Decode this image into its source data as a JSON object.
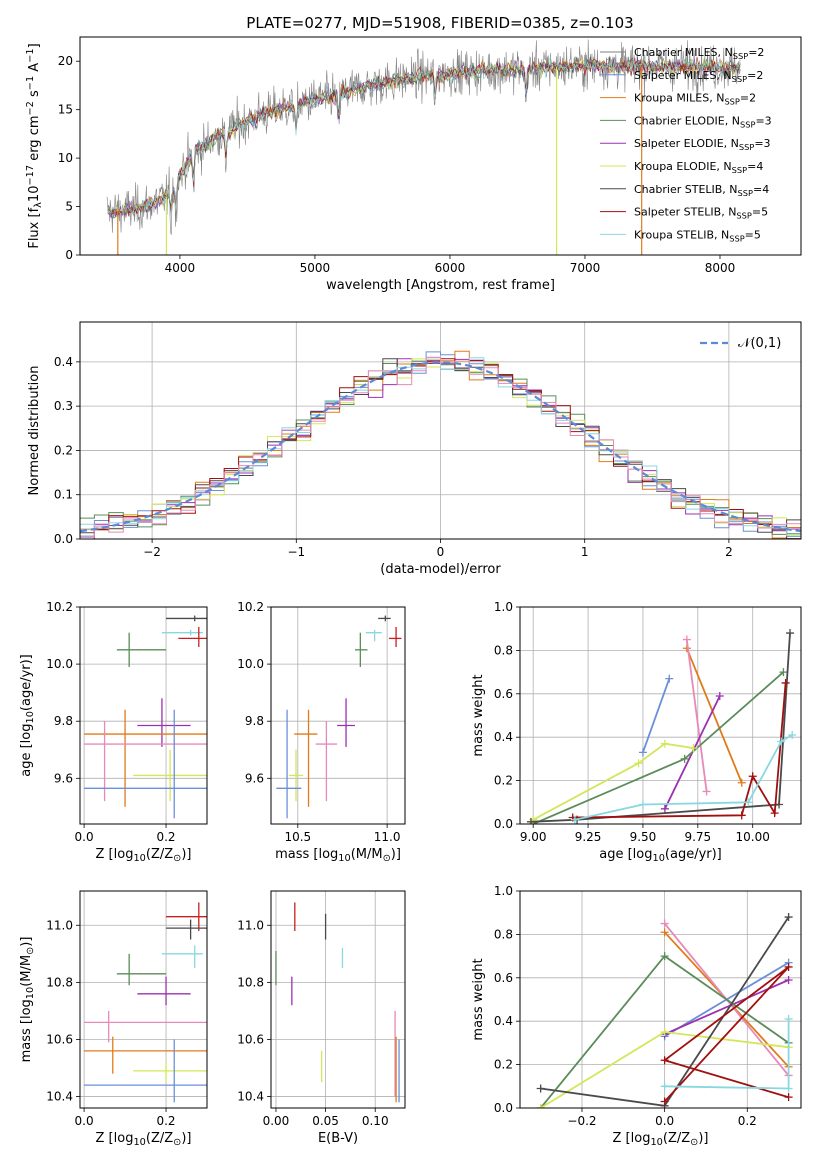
{
  "title": "PLATE=0277, MJD=51908, FIBERID=0385, z=0.103",
  "colors": {
    "chabrier_miles": "#808080",
    "salpeter_miles": "#6b8fd8",
    "kroupa_miles": "#e07b1a",
    "chabrier_elodie": "#5b8c5a",
    "salpeter_elodie": "#9b30b0",
    "kroupa_elodie": "#d4e65a",
    "chabrier_stelib": "#4a4a4a",
    "salpeter_stelib": "#a01010",
    "kroupa_stelib": "#88d8e0",
    "normal_curve": "#5a8ad8",
    "extra_pink": "#e88ab8",
    "extra_red": "#c82020"
  },
  "chart_data": [
    {
      "type": "line",
      "name": "spectrum",
      "xlabel": "wavelength [Angstrom, rest frame]",
      "ylabel": "Flux [f$_\\lambda$10$^{-17}$ erg cm$^{-2}$ s$^{-1}$ A$^{-1}$]",
      "xlim": [
        3260,
        8600
      ],
      "ylim": [
        0,
        22.5
      ],
      "xticks": [
        "4000",
        "5000",
        "6000",
        "7000",
        "8000"
      ],
      "yticks": [
        "0",
        "5",
        "10",
        "15",
        "20"
      ],
      "continuum_x": [
        3500,
        3700,
        3900,
        4100,
        4300,
        4600,
        5000,
        5400,
        5800,
        6200,
        6600,
        7000,
        7400,
        7800,
        8100
      ],
      "continuum_y": [
        4.5,
        4.8,
        6.0,
        10.5,
        12.5,
        14.5,
        16.0,
        17.5,
        18.5,
        19.0,
        19.2,
        19.6,
        19.5,
        19.5,
        19.3
      ],
      "legend": [
        {
          "label": "Chabrier MILES, N$_{SSP}$=2",
          "color_key": "chabrier_miles"
        },
        {
          "label": "Salpeter MILES, N$_{SSP}$=2",
          "color_key": "salpeter_miles"
        },
        {
          "label": "Kroupa MILES, N$_{SSP}$=2",
          "color_key": "kroupa_miles"
        },
        {
          "label": "Chabrier ELODIE, N$_{SSP}$=3",
          "color_key": "chabrier_elodie"
        },
        {
          "label": "Salpeter ELODIE, N$_{SSP}$=3",
          "color_key": "salpeter_elodie"
        },
        {
          "label": "Kroupa ELODIE, N$_{SSP}$=4",
          "color_key": "kroupa_elodie"
        },
        {
          "label": "Chabrier STELIB, N$_{SSP}$=4",
          "color_key": "chabrier_stelib"
        },
        {
          "label": "Salpeter STELIB, N$_{SSP}$=5",
          "color_key": "salpeter_stelib"
        },
        {
          "label": "Kroupa STELIB, N$_{SSP}$=5",
          "color_key": "kroupa_stelib"
        }
      ]
    },
    {
      "type": "area",
      "name": "residual-histogram",
      "xlabel": "(data-model)/error",
      "ylabel": "Normed distribution",
      "xlim": [
        -2.5,
        2.5
      ],
      "ylim": [
        0,
        0.49
      ],
      "xticks": [
        "−2",
        "−1",
        "0",
        "1",
        "2"
      ],
      "yticks": [
        "0.0",
        "0.1",
        "0.2",
        "0.3",
        "0.4"
      ],
      "legend": [
        {
          "label": "$\\mathcal{N}(0,1)$",
          "color_key": "normal_curve"
        }
      ]
    },
    {
      "type": "scatter",
      "name": "age-vs-z",
      "xlabel": "Z [log$_{10}$(Z/Z$_\\odot$)]",
      "ylabel": "age  [log$_{10}$(age/yr)]",
      "xlim": [
        -0.01,
        0.3
      ],
      "ylim": [
        9.44,
        10.2
      ],
      "xticks": [
        "0.0",
        "0.2"
      ],
      "yticks": [
        "9.6",
        "9.8",
        "10.0",
        "10.2"
      ],
      "points": [
        {
          "x": 0.27,
          "y": 10.16,
          "xerr": [
            0.2,
            0.3
          ],
          "yerr": [
            10.15,
            10.17
          ],
          "color_key": "chabrier_stelib"
        },
        {
          "x": 0.26,
          "y": 10.11,
          "xerr": [
            0.19,
            0.29
          ],
          "yerr": [
            10.1,
            10.12
          ],
          "color_key": "kroupa_stelib"
        },
        {
          "x": 0.28,
          "y": 10.09,
          "xerr": [
            0.23,
            0.3
          ],
          "yerr": [
            10.06,
            10.13
          ],
          "color_key": "extra_red"
        },
        {
          "x": 0.11,
          "y": 10.05,
          "xerr": [
            0.08,
            0.2
          ],
          "yerr": [
            9.99,
            10.11
          ],
          "color_key": "chabrier_elodie"
        },
        {
          "x": 0.19,
          "y": 9.785,
          "xerr": [
            0.13,
            0.26
          ],
          "yerr": [
            9.71,
            9.88
          ],
          "color_key": "salpeter_elodie"
        },
        {
          "x": 0.1,
          "y": 9.755,
          "xerr": [
            0.0,
            0.3
          ],
          "yerr": [
            9.5,
            9.84
          ],
          "color_key": "kroupa_miles"
        },
        {
          "x": 0.05,
          "y": 9.72,
          "xerr": [
            0.0,
            0.3
          ],
          "yerr": [
            9.52,
            9.8
          ],
          "color_key": "extra_pink"
        },
        {
          "x": 0.21,
          "y": 9.61,
          "xerr": [
            0.12,
            0.3
          ],
          "yerr": [
            9.52,
            9.7
          ],
          "color_key": "kroupa_elodie"
        },
        {
          "x": 0.22,
          "y": 9.565,
          "xerr": [
            0.0,
            0.3
          ],
          "yerr": [
            9.46,
            9.84
          ],
          "color_key": "salpeter_miles"
        }
      ]
    },
    {
      "type": "scatter",
      "name": "age-vs-mass",
      "xlabel": "mass [log$_{10}$(M/M$_\\odot$)]",
      "ylabel": "",
      "xlim": [
        10.35,
        11.1
      ],
      "ylim": [
        9.44,
        10.2
      ],
      "xticks": [
        "10.5",
        "11.0"
      ],
      "yticks": [
        "9.6",
        "9.8",
        "10.0",
        "10.2"
      ],
      "points": [
        {
          "x": 10.99,
          "y": 10.16,
          "xerr": [
            10.95,
            11.02
          ],
          "yerr": [
            10.15,
            10.17
          ],
          "color_key": "chabrier_stelib"
        },
        {
          "x": 10.93,
          "y": 10.11,
          "xerr": [
            10.88,
            10.97
          ],
          "yerr": [
            10.08,
            10.12
          ],
          "color_key": "kroupa_stelib"
        },
        {
          "x": 11.05,
          "y": 10.09,
          "xerr": [
            11.01,
            11.08
          ],
          "yerr": [
            10.06,
            10.13
          ],
          "color_key": "extra_red"
        },
        {
          "x": 10.85,
          "y": 10.05,
          "xerr": [
            10.82,
            10.89
          ],
          "yerr": [
            9.99,
            10.11
          ],
          "color_key": "chabrier_elodie"
        },
        {
          "x": 10.77,
          "y": 9.785,
          "xerr": [
            10.72,
            10.82
          ],
          "yerr": [
            9.71,
            9.88
          ],
          "color_key": "salpeter_elodie"
        },
        {
          "x": 10.56,
          "y": 9.755,
          "xerr": [
            10.48,
            10.61
          ],
          "yerr": [
            9.5,
            9.84
          ],
          "color_key": "kroupa_miles"
        },
        {
          "x": 10.66,
          "y": 9.72,
          "xerr": [
            10.6,
            10.72
          ],
          "yerr": [
            9.52,
            9.8
          ],
          "color_key": "extra_pink"
        },
        {
          "x": 10.49,
          "y": 9.61,
          "xerr": [
            10.45,
            10.53
          ],
          "yerr": [
            9.52,
            9.7
          ],
          "color_key": "kroupa_elodie"
        },
        {
          "x": 10.44,
          "y": 9.565,
          "xerr": [
            10.38,
            10.52
          ],
          "yerr": [
            9.46,
            9.84
          ],
          "color_key": "salpeter_miles"
        }
      ]
    },
    {
      "type": "line",
      "name": "mass-weight-vs-age",
      "xlabel": "age  [log$_{10}$(age/yr)]",
      "ylabel": "mass weight",
      "xlim": [
        8.94,
        10.22
      ],
      "ylim": [
        0,
        1
      ],
      "xticks": [
        "9.00",
        "9.25",
        "9.50",
        "9.75",
        "10.00"
      ],
      "yticks": [
        "0.0",
        "0.2",
        "0.4",
        "0.6",
        "0.8",
        "1.0"
      ],
      "series": [
        {
          "color_key": "salpeter_miles",
          "x": [
            9.5,
            9.62
          ],
          "y": [
            0.33,
            0.67
          ]
        },
        {
          "color_key": "kroupa_miles",
          "x": [
            9.7,
            9.95
          ],
          "y": [
            0.81,
            0.19
          ]
        },
        {
          "color_key": "extra_pink",
          "x": [
            9.7,
            9.79
          ],
          "y": [
            0.85,
            0.15
          ]
        },
        {
          "color_key": "salpeter_elodie",
          "x": [
            9.6,
            9.85
          ],
          "y": [
            0.07,
            0.59
          ]
        },
        {
          "color_key": "chabrier_elodie",
          "x": [
            9.0,
            9.69,
            10.14
          ],
          "y": [
            0.0,
            0.3,
            0.7
          ]
        },
        {
          "color_key": "kroupa_elodie",
          "x": [
            9.0,
            9.48,
            9.6,
            9.73
          ],
          "y": [
            0.02,
            0.28,
            0.37,
            0.35
          ]
        },
        {
          "color_key": "chabrier_stelib",
          "x": [
            8.99,
            9.2,
            10.12,
            10.17
          ],
          "y": [
            0.01,
            0.02,
            0.09,
            0.88
          ]
        },
        {
          "color_key": "salpeter_stelib",
          "x": [
            9.18,
            9.95,
            10.0,
            10.1,
            10.15
          ],
          "y": [
            0.03,
            0.04,
            0.22,
            0.05,
            0.65
          ]
        },
        {
          "color_key": "kroupa_stelib",
          "x": [
            9.19,
            9.5,
            9.98,
            10.13,
            10.18
          ],
          "y": [
            0.02,
            0.09,
            0.1,
            0.38,
            0.41
          ]
        }
      ]
    },
    {
      "type": "scatter",
      "name": "mass-vs-z",
      "xlabel": "Z [log$_{10}$(Z/Z$_\\odot$)]",
      "ylabel": "mass [log$_{10}$(M/M$_\\odot$)]",
      "xlim": [
        -0.01,
        0.3
      ],
      "ylim": [
        10.36,
        11.12
      ],
      "xticks": [
        "0.0",
        "0.2"
      ],
      "yticks": [
        "10.4",
        "10.6",
        "10.8",
        "11.0"
      ],
      "points": [
        {
          "x": 0.28,
          "y": 11.03,
          "xerr": [
            0.2,
            0.3
          ],
          "yerr": [
            10.98,
            11.08
          ],
          "color_key": "extra_red"
        },
        {
          "x": 0.26,
          "y": 10.99,
          "xerr": [
            0.2,
            0.3
          ],
          "yerr": [
            10.95,
            11.02
          ],
          "color_key": "chabrier_stelib"
        },
        {
          "x": 0.27,
          "y": 10.9,
          "xerr": [
            0.19,
            0.29
          ],
          "yerr": [
            10.85,
            10.93
          ],
          "color_key": "kroupa_stelib"
        },
        {
          "x": 0.11,
          "y": 10.83,
          "xerr": [
            0.08,
            0.2
          ],
          "yerr": [
            10.79,
            10.9
          ],
          "color_key": "chabrier_elodie"
        },
        {
          "x": 0.2,
          "y": 10.76,
          "xerr": [
            0.13,
            0.26
          ],
          "yerr": [
            10.72,
            10.82
          ],
          "color_key": "salpeter_elodie"
        },
        {
          "x": 0.06,
          "y": 10.66,
          "xerr": [
            0.0,
            0.3
          ],
          "yerr": [
            10.59,
            10.7
          ],
          "color_key": "extra_pink"
        },
        {
          "x": 0.07,
          "y": 10.56,
          "xerr": [
            0.0,
            0.3
          ],
          "yerr": [
            10.48,
            10.61
          ],
          "color_key": "kroupa_miles"
        },
        {
          "x": 0.2,
          "y": 10.49,
          "xerr": [
            0.12,
            0.3
          ],
          "yerr": [
            10.45,
            10.52
          ],
          "color_key": "kroupa_elodie"
        },
        {
          "x": 0.22,
          "y": 10.44,
          "xerr": [
            0.0,
            0.3
          ],
          "yerr": [
            10.38,
            10.6
          ],
          "color_key": "salpeter_miles"
        }
      ]
    },
    {
      "type": "scatter",
      "name": "mass-vs-ebv",
      "xlabel": "E(B-V)",
      "ylabel": "",
      "xlim": [
        -0.005,
        0.13
      ],
      "ylim": [
        10.36,
        11.12
      ],
      "xticks": [
        "0.00",
        "0.05",
        "0.10"
      ],
      "yticks": [
        "10.4",
        "10.6",
        "10.8",
        "11.0"
      ],
      "points": [
        {
          "x": 0.0,
          "y": 10.86,
          "yerr": [
            10.79,
            10.91
          ],
          "color_key": "chabrier_elodie"
        },
        {
          "x": 0.019,
          "y": 11.03,
          "yerr": [
            10.98,
            11.08
          ],
          "color_key": "extra_red"
        },
        {
          "x": 0.016,
          "y": 10.76,
          "yerr": [
            10.72,
            10.82
          ],
          "color_key": "salpeter_elodie"
        },
        {
          "x": 0.05,
          "y": 10.99,
          "yerr": [
            10.95,
            11.04
          ],
          "color_key": "chabrier_stelib"
        },
        {
          "x": 0.067,
          "y": 10.89,
          "yerr": [
            10.85,
            10.92
          ],
          "color_key": "kroupa_stelib"
        },
        {
          "x": 0.046,
          "y": 10.49,
          "yerr": [
            10.45,
            10.56
          ],
          "color_key": "kroupa_elodie"
        },
        {
          "x": 0.12,
          "y": 10.55,
          "yerr": [
            10.4,
            10.7
          ],
          "color_key": "extra_pink"
        },
        {
          "x": 0.121,
          "y": 10.5,
          "yerr": [
            10.38,
            10.61
          ],
          "color_key": "kroupa_miles"
        },
        {
          "x": 0.124,
          "y": 10.49,
          "yerr": [
            10.38,
            10.6
          ],
          "color_key": "salpeter_miles"
        }
      ]
    },
    {
      "type": "line",
      "name": "mass-weight-vs-z",
      "xlabel": "Z [log$_{10}$(Z/Z$_\\odot$)]",
      "ylabel": "mass weight",
      "xlim": [
        -0.35,
        0.33
      ],
      "ylim": [
        0,
        1
      ],
      "xticks": [
        "−0.2",
        "0.0",
        "0.2"
      ],
      "yticks": [
        "0.0",
        "0.2",
        "0.4",
        "0.6",
        "0.8",
        "1.0"
      ],
      "series": [
        {
          "color_key": "salpeter_miles",
          "x": [
            0.0,
            0.3
          ],
          "y": [
            0.33,
            0.67
          ]
        },
        {
          "color_key": "kroupa_miles",
          "x": [
            0.0,
            0.3
          ],
          "y": [
            0.81,
            0.19
          ]
        },
        {
          "color_key": "extra_pink",
          "x": [
            0.0,
            0.3
          ],
          "y": [
            0.85,
            0.15
          ]
        },
        {
          "color_key": "salpeter_elodie",
          "x": [
            0.0,
            0.3
          ],
          "y": [
            0.34,
            0.59
          ]
        },
        {
          "color_key": "chabrier_elodie",
          "x": [
            -0.3,
            0.0,
            0.3
          ],
          "y": [
            0.0,
            0.7,
            0.3
          ]
        },
        {
          "color_key": "kroupa_elodie",
          "x": [
            -0.3,
            0.0,
            0.3
          ],
          "y": [
            0.0,
            0.35,
            0.28
          ]
        },
        {
          "color_key": "chabrier_stelib",
          "x": [
            -0.3,
            0.0,
            0.3
          ],
          "y": [
            0.09,
            0.01,
            0.88
          ]
        },
        {
          "color_key": "salpeter_stelib",
          "x": [
            0.0,
            0.3,
            0.0,
            0.3
          ],
          "y": [
            0.03,
            0.65,
            0.22,
            0.05
          ]
        },
        {
          "color_key": "kroupa_stelib",
          "x": [
            0.0,
            0.3,
            0.3
          ],
          "y": [
            0.1,
            0.09,
            0.41
          ]
        }
      ]
    }
  ]
}
